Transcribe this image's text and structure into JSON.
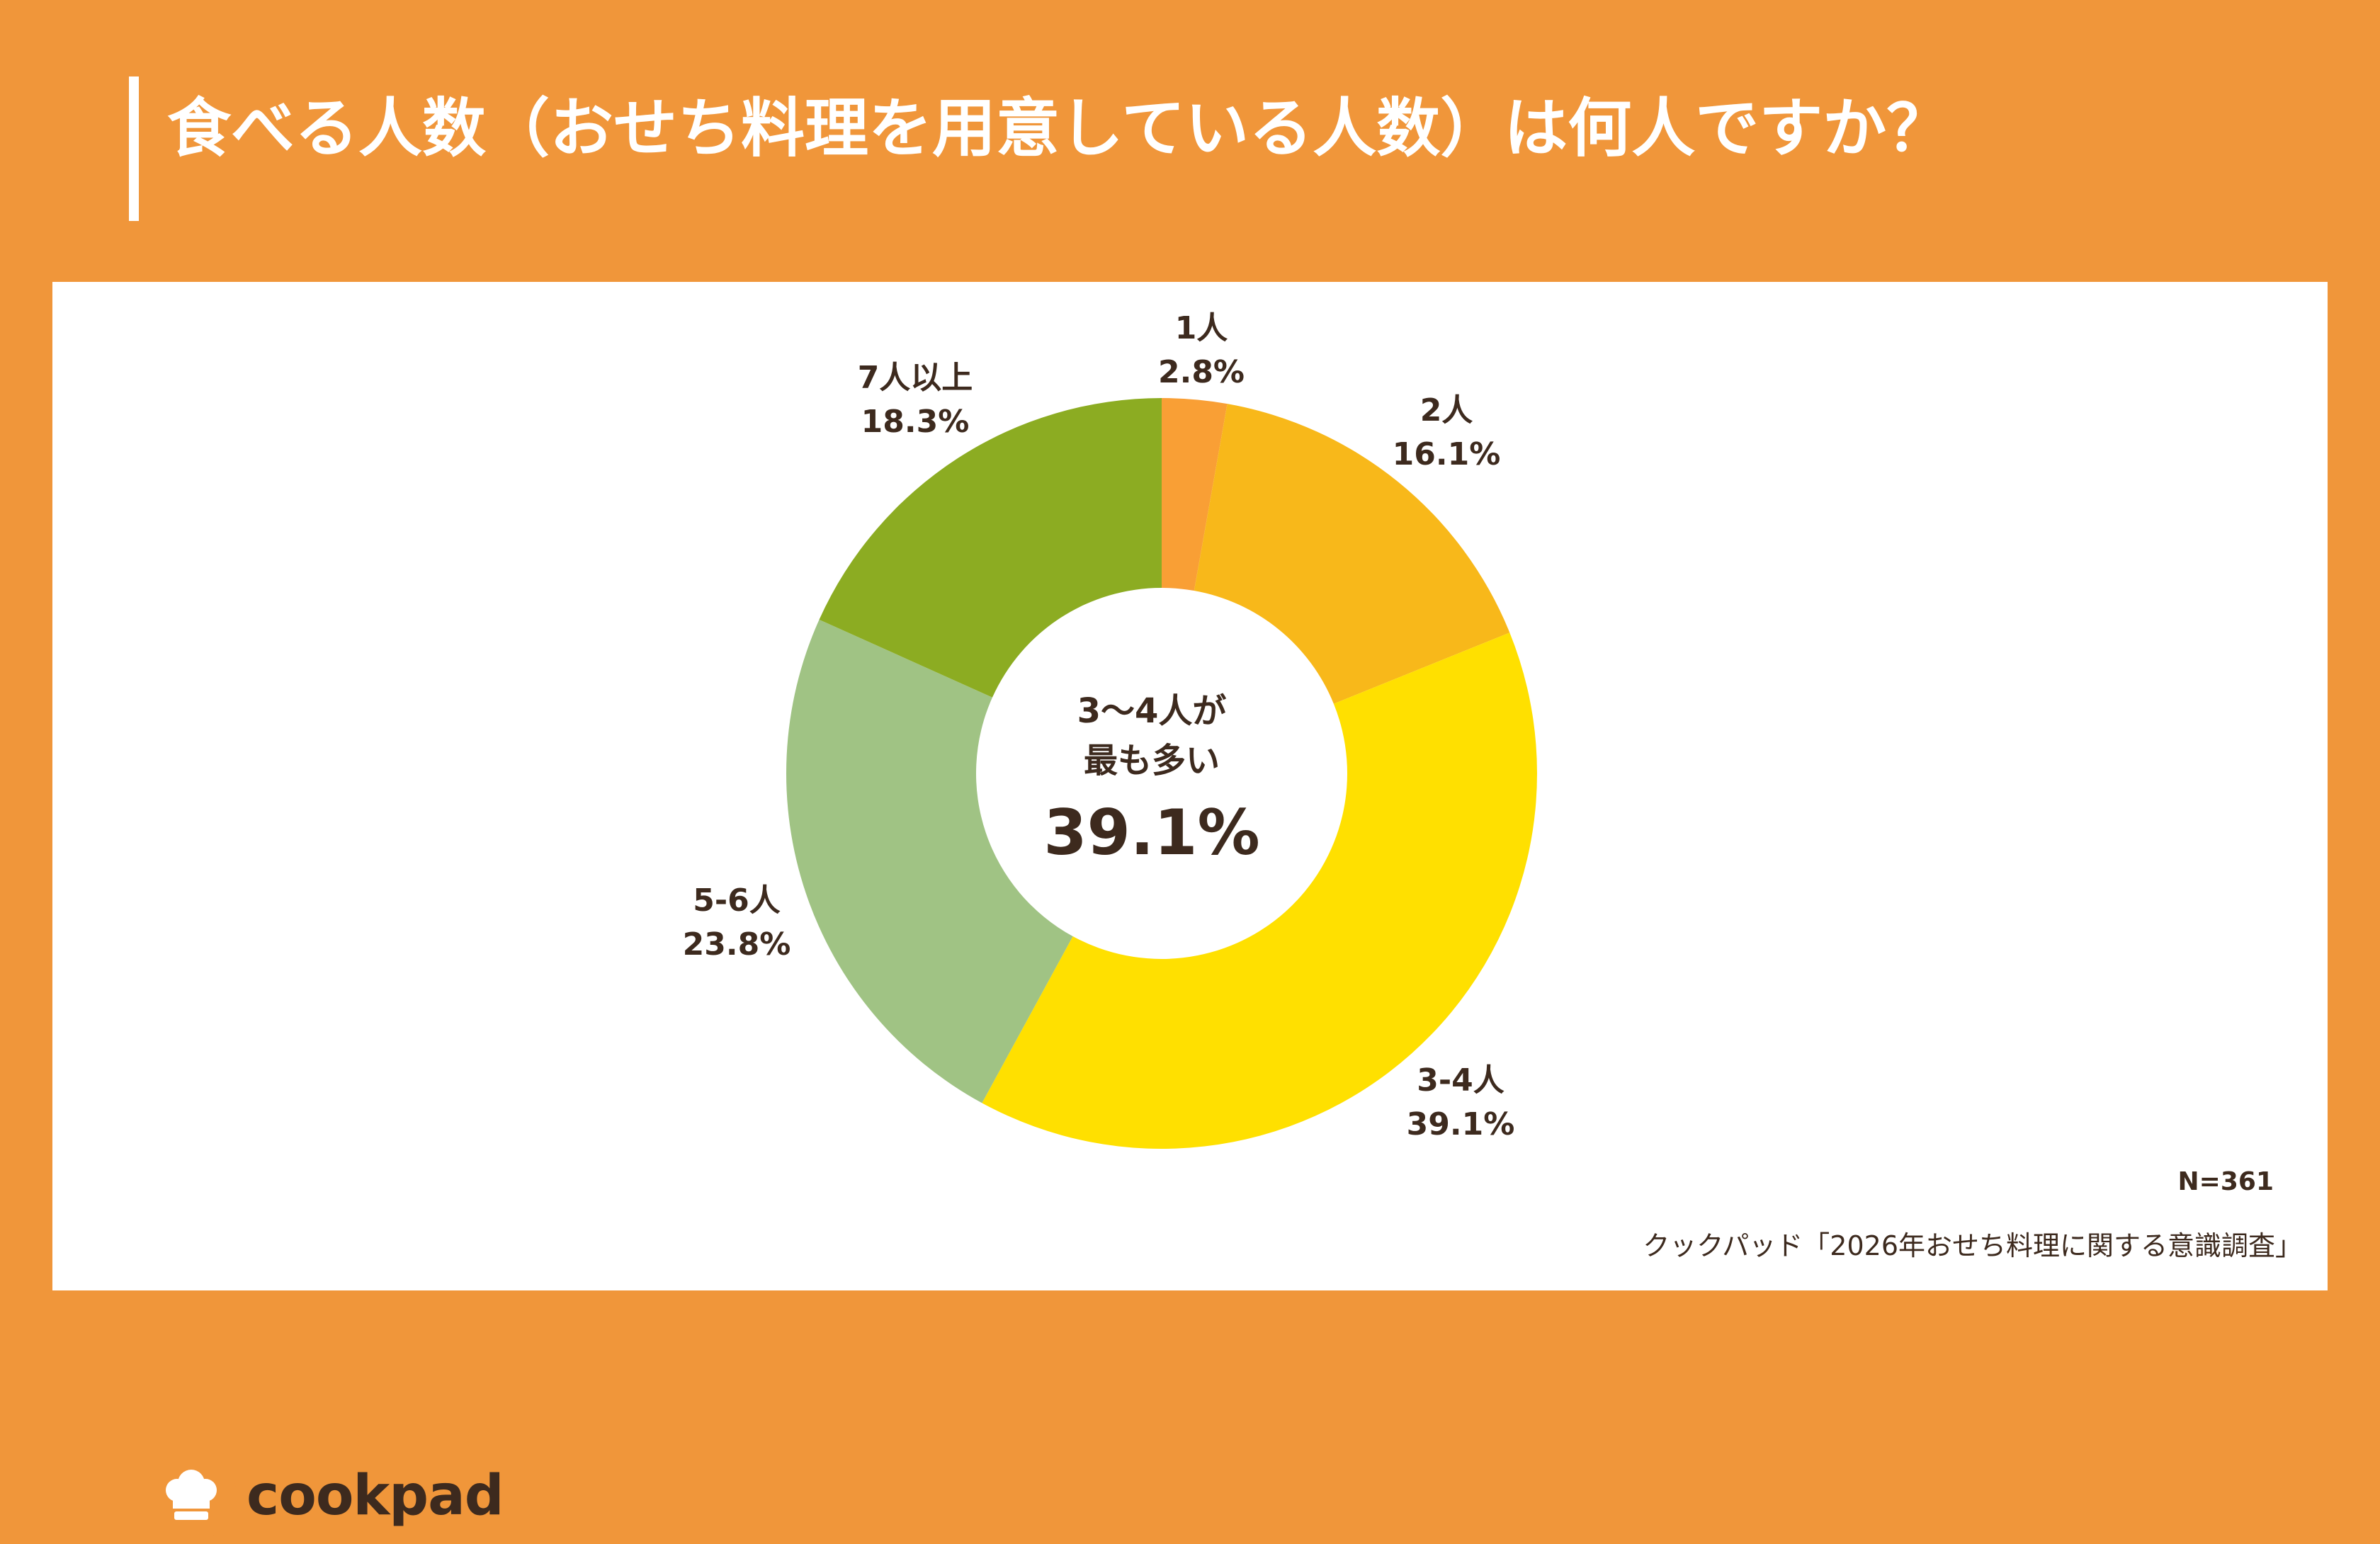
{
  "title": "食べる人数（おせち料理を用意している人数）は何人ですか？",
  "center": {
    "line1": "3〜4人が",
    "line2": "最も多い",
    "value": "39.1%"
  },
  "n_label": "N=361",
  "source": "クックパッド「2026年おせち料理に関する意識調査」",
  "logo": {
    "text": "cookpad",
    "icon": "chef-hat-icon",
    "color": "#F0963A"
  },
  "colors": {
    "background": "#F0963A",
    "panel": "#FFFFFF",
    "text": "#3D2A1E"
  },
  "chart_data": {
    "type": "pie",
    "donut": true,
    "categories": [
      "1人",
      "2人",
      "3-4人",
      "5-6人",
      "7人以上"
    ],
    "values": [
      2.8,
      16.1,
      39.1,
      23.8,
      18.3
    ],
    "value_labels": [
      "2.8%",
      "16.1%",
      "39.1%",
      "23.8%",
      "18.3%"
    ],
    "colors": [
      "#F99F35",
      "#F8B81A",
      "#FFE000",
      "#A0C384",
      "#8CAC22"
    ],
    "unit": "%"
  }
}
